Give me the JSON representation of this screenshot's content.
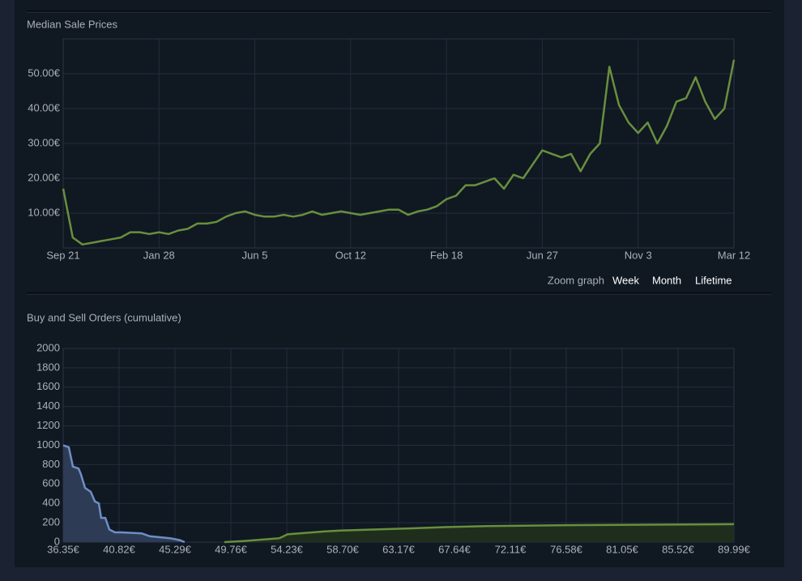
{
  "chart_data": [
    {
      "type": "line",
      "title": "Median Sale Prices",
      "categories": [
        "Sep 21",
        null,
        null,
        null,
        null,
        null,
        null,
        null,
        null,
        null,
        "Jan 28",
        null,
        null,
        null,
        null,
        null,
        null,
        null,
        null,
        null,
        "Jun 5",
        null,
        null,
        null,
        null,
        null,
        null,
        null,
        null,
        null,
        "Oct 12",
        null,
        null,
        null,
        null,
        null,
        null,
        null,
        null,
        null,
        "Feb 18",
        null,
        null,
        null,
        null,
        null,
        null,
        null,
        null,
        null,
        "Jun 27",
        null,
        null,
        null,
        null,
        null,
        null,
        null,
        null,
        null,
        "Nov 3",
        null,
        null,
        null,
        null,
        null,
        null,
        null,
        null,
        null,
        "Mar 12"
      ],
      "series": [
        {
          "color": "#688f3e",
          "values": [
            17,
            3,
            1,
            1.5,
            2,
            2.5,
            3,
            4.5,
            4.5,
            4,
            4.5,
            4,
            5,
            5.5,
            7,
            7,
            7.5,
            9,
            10,
            10.5,
            9.5,
            9,
            9,
            9.5,
            9,
            9.5,
            10.5,
            9.5,
            10,
            10.5,
            10,
            9.5,
            10,
            10.5,
            11,
            11,
            9.5,
            10.5,
            11,
            12,
            14,
            15,
            18,
            18,
            19,
            20,
            17,
            21,
            20,
            24,
            28,
            27,
            26,
            27,
            22,
            27,
            30,
            52,
            41,
            36,
            33,
            36,
            30,
            35,
            42,
            43,
            49,
            42,
            37,
            40,
            54
          ]
        }
      ],
      "ylim": [
        0,
        60
      ],
      "yticks": [
        {
          "value": 10,
          "label": "10.00€"
        },
        {
          "value": 20,
          "label": "20.00€"
        },
        {
          "value": 30,
          "label": "30.00€"
        },
        {
          "value": 40,
          "label": "40.00€"
        },
        {
          "value": 50,
          "label": "50.00€"
        }
      ],
      "grid": true
    },
    {
      "type": "area",
      "title": "Buy and Sell Orders (cumulative)",
      "series": [
        {
          "color": "#6d8fc7",
          "fill": "#2e3b55",
          "x": [
            36.35,
            36.8,
            37.13,
            37.58,
            37.77,
            38.1,
            38.55,
            38.88,
            39.2,
            39.39,
            39.72,
            40.04,
            40.49,
            41.01,
            42.63,
            43.28,
            44.9,
            45.68,
            46.06
          ],
          "values": [
            1000,
            980,
            780,
            760,
            700,
            560,
            520,
            420,
            400,
            250,
            250,
            130,
            100,
            100,
            90,
            60,
            40,
            20,
            0
          ]
        },
        {
          "color": "#688f3e",
          "fill": "#1f2e1c",
          "x": [
            49.24,
            50.73,
            53.64,
            54.29,
            57.2,
            58.5,
            63.68,
            66.92,
            70.16,
            76.63,
            83.11,
            89.99
          ],
          "values": [
            0,
            10,
            40,
            80,
            110,
            120,
            140,
            155,
            165,
            175,
            180,
            185
          ]
        }
      ],
      "xlim": [
        36.35,
        89.99
      ],
      "xticks": [
        {
          "value": 36.35,
          "label": "36.35€"
        },
        {
          "value": 40.82,
          "label": "40.82€"
        },
        {
          "value": 45.29,
          "label": "45.29€"
        },
        {
          "value": 49.76,
          "label": "49.76€"
        },
        {
          "value": 54.23,
          "label": "54.23€"
        },
        {
          "value": 58.7,
          "label": "58.70€"
        },
        {
          "value": 63.17,
          "label": "63.17€"
        },
        {
          "value": 67.64,
          "label": "67.64€"
        },
        {
          "value": 72.11,
          "label": "72.11€"
        },
        {
          "value": 76.58,
          "label": "76.58€"
        },
        {
          "value": 81.05,
          "label": "81.05€"
        },
        {
          "value": 85.52,
          "label": "85.52€"
        },
        {
          "value": 89.99,
          "label": "89.99€"
        }
      ],
      "ylim": [
        0,
        2000
      ],
      "yticks": [
        0,
        200,
        400,
        600,
        800,
        1000,
        1200,
        1400,
        1600,
        1800,
        2000
      ],
      "grid": true
    }
  ],
  "zoom": {
    "label": "Zoom graph",
    "options": [
      "Week",
      "Month",
      "Lifetime"
    ]
  }
}
